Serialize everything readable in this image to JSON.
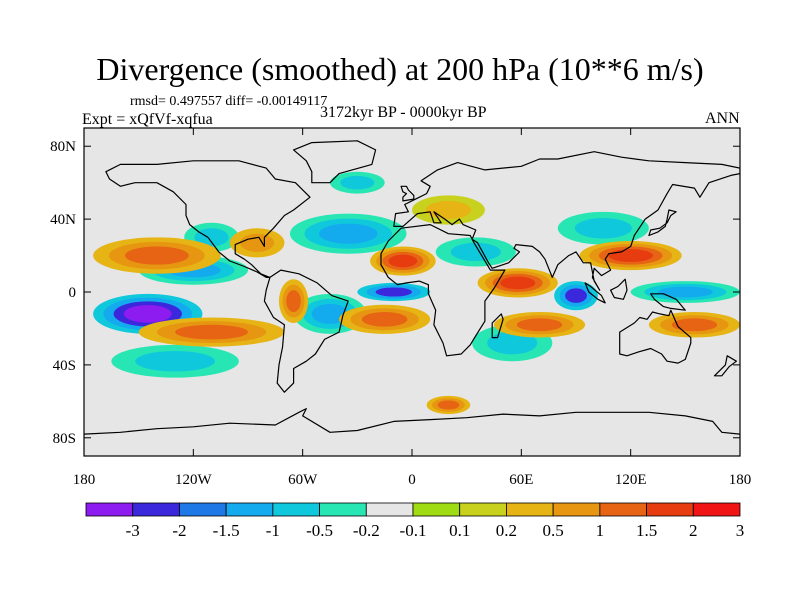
{
  "title": "Divergence (smoothed) at 200 hPa (10**6 m/s)",
  "stats": "rmsd= 0.497557 diff= -0.00149117",
  "experiment": "Expt = xQfVf-xqfua",
  "period": "3172kyr BP - 0000kyr BP",
  "season": "ANN",
  "colors": {
    "background_field": "#e6e6e6",
    "coastline": "#000000",
    "bins": [
      "#8c1cf0",
      "#3c28dc",
      "#1e78e6",
      "#14aaee",
      "#0fc8dc",
      "#28e6b4",
      "#e6e6e6",
      "#a0dc14",
      "#c8d21e",
      "#e6b414",
      "#e69610",
      "#e66414",
      "#e63c0f",
      "#f01414"
    ]
  },
  "map": {
    "projection": "cylindrical-equidistant",
    "lon_range": [
      -180,
      180
    ],
    "lat_range": [
      -90,
      90
    ],
    "lon_ticks": [
      {
        "value": -180,
        "label": "180"
      },
      {
        "value": -120,
        "label": "120W"
      },
      {
        "value": -60,
        "label": "60W"
      },
      {
        "value": 0,
        "label": "0"
      },
      {
        "value": 60,
        "label": "60E"
      },
      {
        "value": 120,
        "label": "120E"
      },
      {
        "value": 180,
        "label": "180"
      }
    ],
    "lat_ticks": [
      {
        "value": 80,
        "label": "80N"
      },
      {
        "value": 40,
        "label": "40N"
      },
      {
        "value": 0,
        "label": "0"
      },
      {
        "value": -40,
        "label": "40S"
      },
      {
        "value": -80,
        "label": "80S"
      }
    ],
    "features": [
      {
        "name": "divergence-south-pacific-east",
        "type": "ellipse",
        "lon": -145,
        "lat": -12,
        "rx": 30,
        "ry": 11,
        "levels": [
          -0.5,
          -1,
          -2,
          -3
        ]
      },
      {
        "name": "divergence-pacific-blue-north",
        "type": "ellipse",
        "lon": -120,
        "lat": 12,
        "rx": 30,
        "ry": 8,
        "levels": [
          -0.2,
          -0.5,
          -1
        ]
      },
      {
        "name": "divergence-central-pacific-30n",
        "type": "ellipse",
        "lon": -110,
        "lat": 30,
        "rx": 15,
        "ry": 8,
        "levels": [
          -0.2,
          -0.5
        ]
      },
      {
        "name": "divergence-south-pacific-cyan",
        "type": "ellipse",
        "lon": -130,
        "lat": -38,
        "rx": 35,
        "ry": 9,
        "levels": [
          -0.2,
          -0.5
        ]
      },
      {
        "name": "divergence-atlantic-brazil",
        "type": "ellipse",
        "lon": -45,
        "lat": -12,
        "rx": 20,
        "ry": 11,
        "levels": [
          -0.2,
          -0.5,
          -1
        ]
      },
      {
        "name": "divergence-atlantic-north",
        "type": "ellipse",
        "lon": -35,
        "lat": 32,
        "rx": 32,
        "ry": 11,
        "levels": [
          -0.2,
          -0.5,
          -1
        ]
      },
      {
        "name": "divergence-equatorial-atlantic",
        "type": "ellipse",
        "lon": -10,
        "lat": 0,
        "rx": 20,
        "ry": 5,
        "levels": [
          -0.5,
          -1,
          -2
        ]
      },
      {
        "name": "divergence-north-atlantic-60n",
        "type": "ellipse",
        "lon": -30,
        "lat": 60,
        "rx": 15,
        "ry": 6,
        "levels": [
          -0.2,
          -0.5
        ]
      },
      {
        "name": "divergence-africa-east",
        "type": "ellipse",
        "lon": 35,
        "lat": 22,
        "rx": 22,
        "ry": 8,
        "levels": [
          -0.2,
          -0.5
        ]
      },
      {
        "name": "divergence-indian-ocean-south",
        "type": "ellipse",
        "lon": 55,
        "lat": -28,
        "rx": 22,
        "ry": 10,
        "levels": [
          -0.2,
          -0.5
        ]
      },
      {
        "name": "divergence-indian-ocean-bay",
        "type": "ellipse",
        "lon": 90,
        "lat": -2,
        "rx": 12,
        "ry": 8,
        "levels": [
          -0.5,
          -1,
          -2
        ]
      },
      {
        "name": "divergence-asia-north",
        "type": "ellipse",
        "lon": 105,
        "lat": 35,
        "rx": 25,
        "ry": 9,
        "levels": [
          -0.2,
          -0.5
        ]
      },
      {
        "name": "divergence-west-pacific",
        "type": "ellipse",
        "lon": 150,
        "lat": 0,
        "rx": 30,
        "ry": 6,
        "levels": [
          -0.2,
          -0.5,
          -1
        ]
      },
      {
        "name": "convergence-pacific-central",
        "type": "ellipse",
        "lon": -140,
        "lat": 20,
        "rx": 35,
        "ry": 10,
        "levels": [
          0.2,
          0.5,
          1
        ]
      },
      {
        "name": "convergence-pacific-south-band",
        "type": "ellipse",
        "lon": -110,
        "lat": -22,
        "rx": 40,
        "ry": 8,
        "levels": [
          0.2,
          0.5,
          1
        ]
      },
      {
        "name": "convergence-south-america-west",
        "type": "ellipse",
        "lon": -65,
        "lat": -5,
        "rx": 8,
        "ry": 12,
        "levels": [
          0.2,
          0.5,
          1
        ]
      },
      {
        "name": "convergence-gulf-mexico",
        "type": "ellipse",
        "lon": -85,
        "lat": 27,
        "rx": 15,
        "ry": 8,
        "levels": [
          0.2,
          0.5
        ]
      },
      {
        "name": "convergence-africa-sahel",
        "type": "ellipse",
        "lon": -5,
        "lat": 17,
        "rx": 18,
        "ry": 8,
        "levels": [
          0.2,
          0.5,
          1,
          1.5
        ]
      },
      {
        "name": "convergence-atlantic-south",
        "type": "ellipse",
        "lon": -15,
        "lat": -15,
        "rx": 25,
        "ry": 8,
        "levels": [
          0.2,
          0.5,
          1
        ]
      },
      {
        "name": "convergence-europe",
        "type": "ellipse",
        "lon": 20,
        "lat": 45,
        "rx": 20,
        "ry": 8,
        "levels": [
          0.1,
          0.2
        ]
      },
      {
        "name": "convergence-arabian-sea",
        "type": "ellipse",
        "lon": 58,
        "lat": 5,
        "rx": 22,
        "ry": 8,
        "levels": [
          0.2,
          0.5,
          1,
          1.5
        ]
      },
      {
        "name": "convergence-indian-ocean-south",
        "type": "ellipse",
        "lon": 70,
        "lat": -18,
        "rx": 25,
        "ry": 7,
        "levels": [
          0.2,
          0.5,
          1
        ]
      },
      {
        "name": "convergence-east-asia",
        "type": "ellipse",
        "lon": 120,
        "lat": 20,
        "rx": 28,
        "ry": 8,
        "levels": [
          0.2,
          0.5,
          1,
          1.5
        ]
      },
      {
        "name": "convergence-southwest-pacific",
        "type": "ellipse",
        "lon": 155,
        "lat": -18,
        "rx": 25,
        "ry": 7,
        "levels": [
          0.2,
          0.5,
          1
        ]
      },
      {
        "name": "convergence-southern-ocean",
        "type": "ellipse",
        "lon": 20,
        "lat": -62,
        "rx": 12,
        "ry": 5,
        "levels": [
          0.2,
          0.5,
          1
        ]
      }
    ]
  },
  "colorbar": {
    "labels": [
      "-3",
      "-2",
      "-1.5",
      "-1",
      "-0.5",
      "-0.2",
      "-0.1",
      "0.1",
      "0.2",
      "0.5",
      "1",
      "1.5",
      "2",
      "3"
    ]
  }
}
